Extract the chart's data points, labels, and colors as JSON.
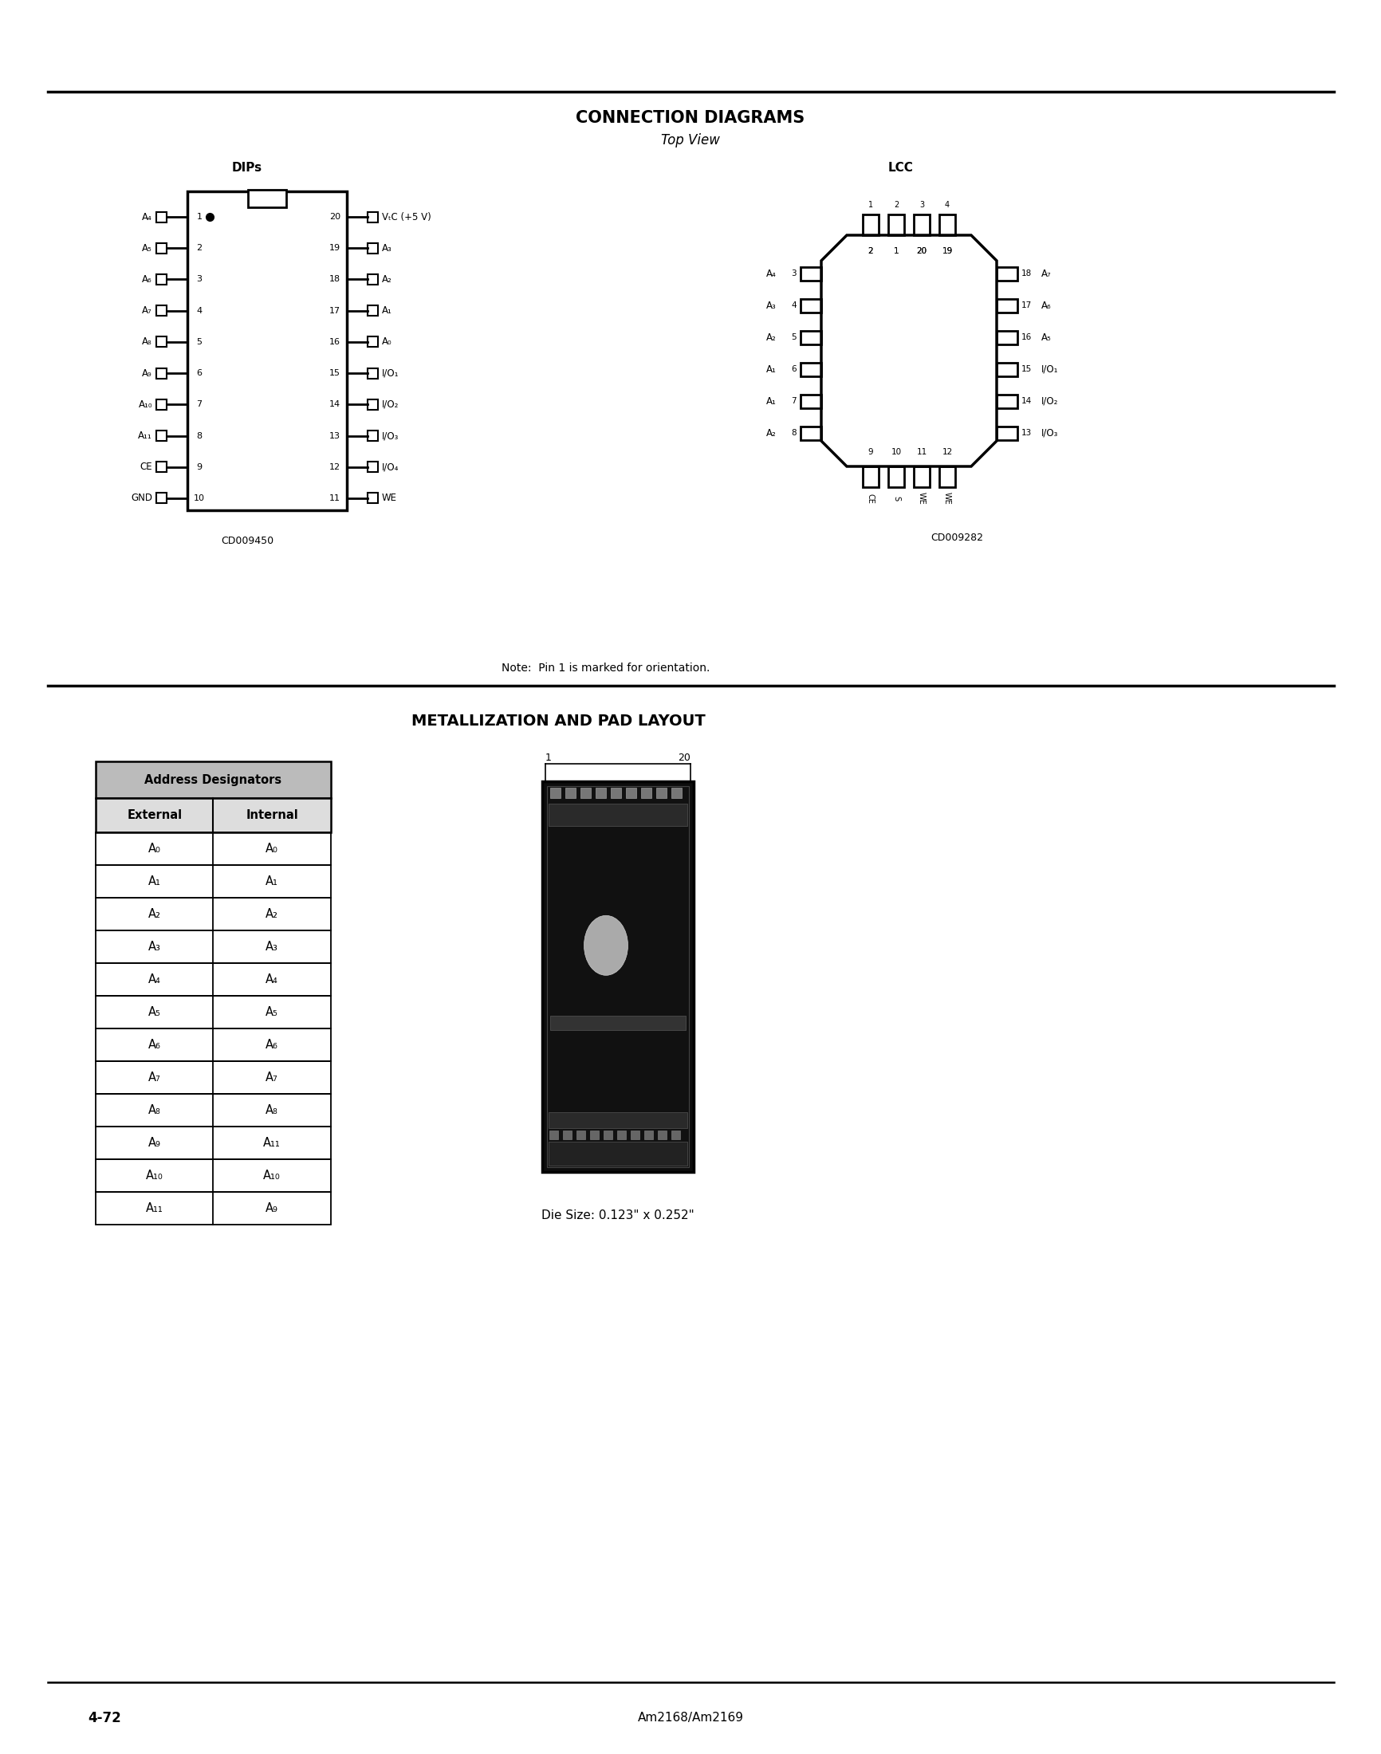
{
  "title_connection": "CONNECTION DIAGRAMS",
  "subtitle_connection": "Top View",
  "title_metallization": "METALLIZATION AND PAD LAYOUT",
  "dip_label": "DIPs",
  "lcc_label": "LCC",
  "note_text": "Note:  Pin 1 is marked for orientation.",
  "cd_code_dip": "CD009450",
  "cd_code_lcc": "CD009282",
  "die_size_text": "Die Size: 0.123\" x 0.252\"",
  "footer_left": "4-72",
  "footer_center": "Am2168/Am2169",
  "dip_left_pins": [
    [
      "A₄",
      "1"
    ],
    [
      "A₅",
      "2"
    ],
    [
      "A₆",
      "3"
    ],
    [
      "A₇",
      "4"
    ],
    [
      "A₈",
      "5"
    ],
    [
      "A₉",
      "6"
    ],
    [
      "A₁₀",
      "7"
    ],
    [
      "A₁₁",
      "8"
    ],
    [
      "CE",
      "9"
    ],
    [
      "GND",
      "10"
    ]
  ],
  "dip_right_pins": [
    [
      "VₜC (+5 V)",
      "20"
    ],
    [
      "A₃",
      "19"
    ],
    [
      "A₂",
      "18"
    ],
    [
      "A₁",
      "17"
    ],
    [
      "A₀",
      "16"
    ],
    [
      "I/O₁",
      "15"
    ],
    [
      "I/O₂",
      "14"
    ],
    [
      "I/O₃",
      "13"
    ],
    [
      "I/O₄",
      "12"
    ],
    [
      "WE",
      "11"
    ]
  ],
  "lcc_left_pins": [
    [
      "A₄",
      "3"
    ],
    [
      "A₃",
      "4"
    ],
    [
      "A₂",
      "5"
    ],
    [
      "A₁",
      "6"
    ],
    [
      "A₁",
      "7"
    ],
    [
      "A₂",
      "8"
    ]
  ],
  "lcc_right_pins": [
    [
      "A₇",
      "18"
    ],
    [
      "A₆",
      "17"
    ],
    [
      "A₅",
      "16"
    ],
    [
      "I/O₁",
      "15"
    ],
    [
      "I/O₂",
      "14"
    ],
    [
      "I/O₃",
      "13"
    ]
  ],
  "lcc_top_nums": [
    "2",
    "1",
    "20",
    "19"
  ],
  "lcc_bot_nums": [
    "9",
    "10",
    "11",
    "12"
  ],
  "lcc_bot_labels": [
    "CE",
    "S",
    "WE",
    "WE"
  ],
  "table_header": "Address Designators",
  "table_col1": "External",
  "table_col2": "Internal",
  "table_rows": [
    [
      "A₀",
      "A₀"
    ],
    [
      "A₁",
      "A₁"
    ],
    [
      "A₂",
      "A₂"
    ],
    [
      "A₃",
      "A₃"
    ],
    [
      "A₄",
      "A₄"
    ],
    [
      "A₅",
      "A₅"
    ],
    [
      "A₆",
      "A₆"
    ],
    [
      "A₇",
      "A₇"
    ],
    [
      "A₈",
      "A₈"
    ],
    [
      "A₉",
      "A₁₁"
    ],
    [
      "A₁₀",
      "A₁₀"
    ],
    [
      "A₁₁",
      "A₉"
    ]
  ],
  "bg_color": "#ffffff",
  "line_color": "#000000",
  "text_color": "#000000"
}
